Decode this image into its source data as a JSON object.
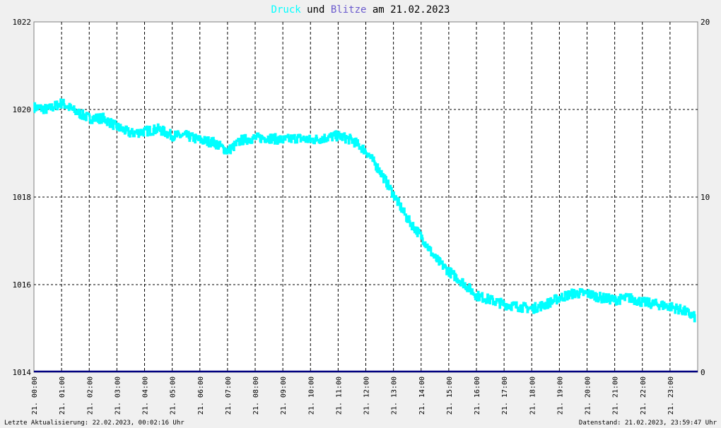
{
  "title": {
    "part1": "Druck",
    "part2": " und ",
    "part3": "Blitze",
    "part4": " am 21.02.2023",
    "color1": "#00ffff",
    "color2": "#000000",
    "color3": "#6a5acd",
    "color4": "#000000"
  },
  "footer": {
    "left": "Letzte Aktualisierung: 22.02.2023, 00:02:16 Uhr",
    "right": "Datenstand: 21.02.2023, 23:59:47 Uhr"
  },
  "colors": {
    "background": "#ffffff",
    "page": "#f0f0f0",
    "grid": "#000000",
    "pressure": "#00ffff",
    "lightning": "#000080"
  },
  "chart_data": {
    "type": "line",
    "title": "Druck und Blitze am 21.02.2023",
    "grid": true,
    "x_tick_labels": [
      "21. 00:00",
      "21. 01:00",
      "21. 02:00",
      "21. 03:00",
      "21. 04:00",
      "21. 05:00",
      "21. 06:00",
      "21. 07:00",
      "21. 08:00",
      "21. 09:00",
      "21. 10:00",
      "21. 11:00",
      "21. 12:00",
      "21. 13:00",
      "21. 14:00",
      "21. 15:00",
      "21. 16:00",
      "21. 17:00",
      "21. 18:00",
      "21. 19:00",
      "21. 20:00",
      "21. 21:00",
      "21. 22:00",
      "21. 23:00"
    ],
    "xlim_hours": [
      0,
      24
    ],
    "y_left": {
      "ticks": [
        "1014",
        "1016",
        "1018",
        "1020",
        "1022"
      ],
      "ylim": [
        1014,
        1022
      ]
    },
    "y_right": {
      "ticks": [
        "0",
        "10",
        "20"
      ],
      "ylim": [
        0,
        20
      ]
    },
    "series": [
      {
        "name": "Druck",
        "axis": "left",
        "color": "#00ffff",
        "x": [
          0,
          0.5,
          1,
          1.5,
          2,
          2.5,
          3,
          3.5,
          4,
          4.5,
          5,
          5.5,
          6,
          6.5,
          7,
          7.5,
          8,
          8.5,
          9,
          9.5,
          10,
          10.5,
          11,
          11.5,
          12,
          12.5,
          13,
          13.5,
          14,
          14.5,
          15,
          15.5,
          16,
          16.5,
          17,
          17.5,
          18,
          18.5,
          19,
          19.5,
          20,
          20.5,
          21,
          21.5,
          22,
          22.5,
          23,
          23.5,
          23.9
        ],
        "y": [
          1020.05,
          1020.0,
          1020.15,
          1019.95,
          1019.8,
          1019.8,
          1019.6,
          1019.45,
          1019.5,
          1019.55,
          1019.4,
          1019.4,
          1019.3,
          1019.25,
          1019.05,
          1019.3,
          1019.35,
          1019.35,
          1019.3,
          1019.35,
          1019.3,
          1019.35,
          1019.4,
          1019.3,
          1019.05,
          1018.6,
          1018.05,
          1017.5,
          1017.1,
          1016.6,
          1016.3,
          1016.05,
          1015.75,
          1015.65,
          1015.55,
          1015.5,
          1015.45,
          1015.55,
          1015.7,
          1015.8,
          1015.8,
          1015.7,
          1015.65,
          1015.7,
          1015.6,
          1015.55,
          1015.5,
          1015.4,
          1015.25
        ]
      },
      {
        "name": "Blitze",
        "axis": "right",
        "color": "#000080",
        "x": [
          0,
          24
        ],
        "y": [
          0,
          0
        ]
      }
    ]
  }
}
